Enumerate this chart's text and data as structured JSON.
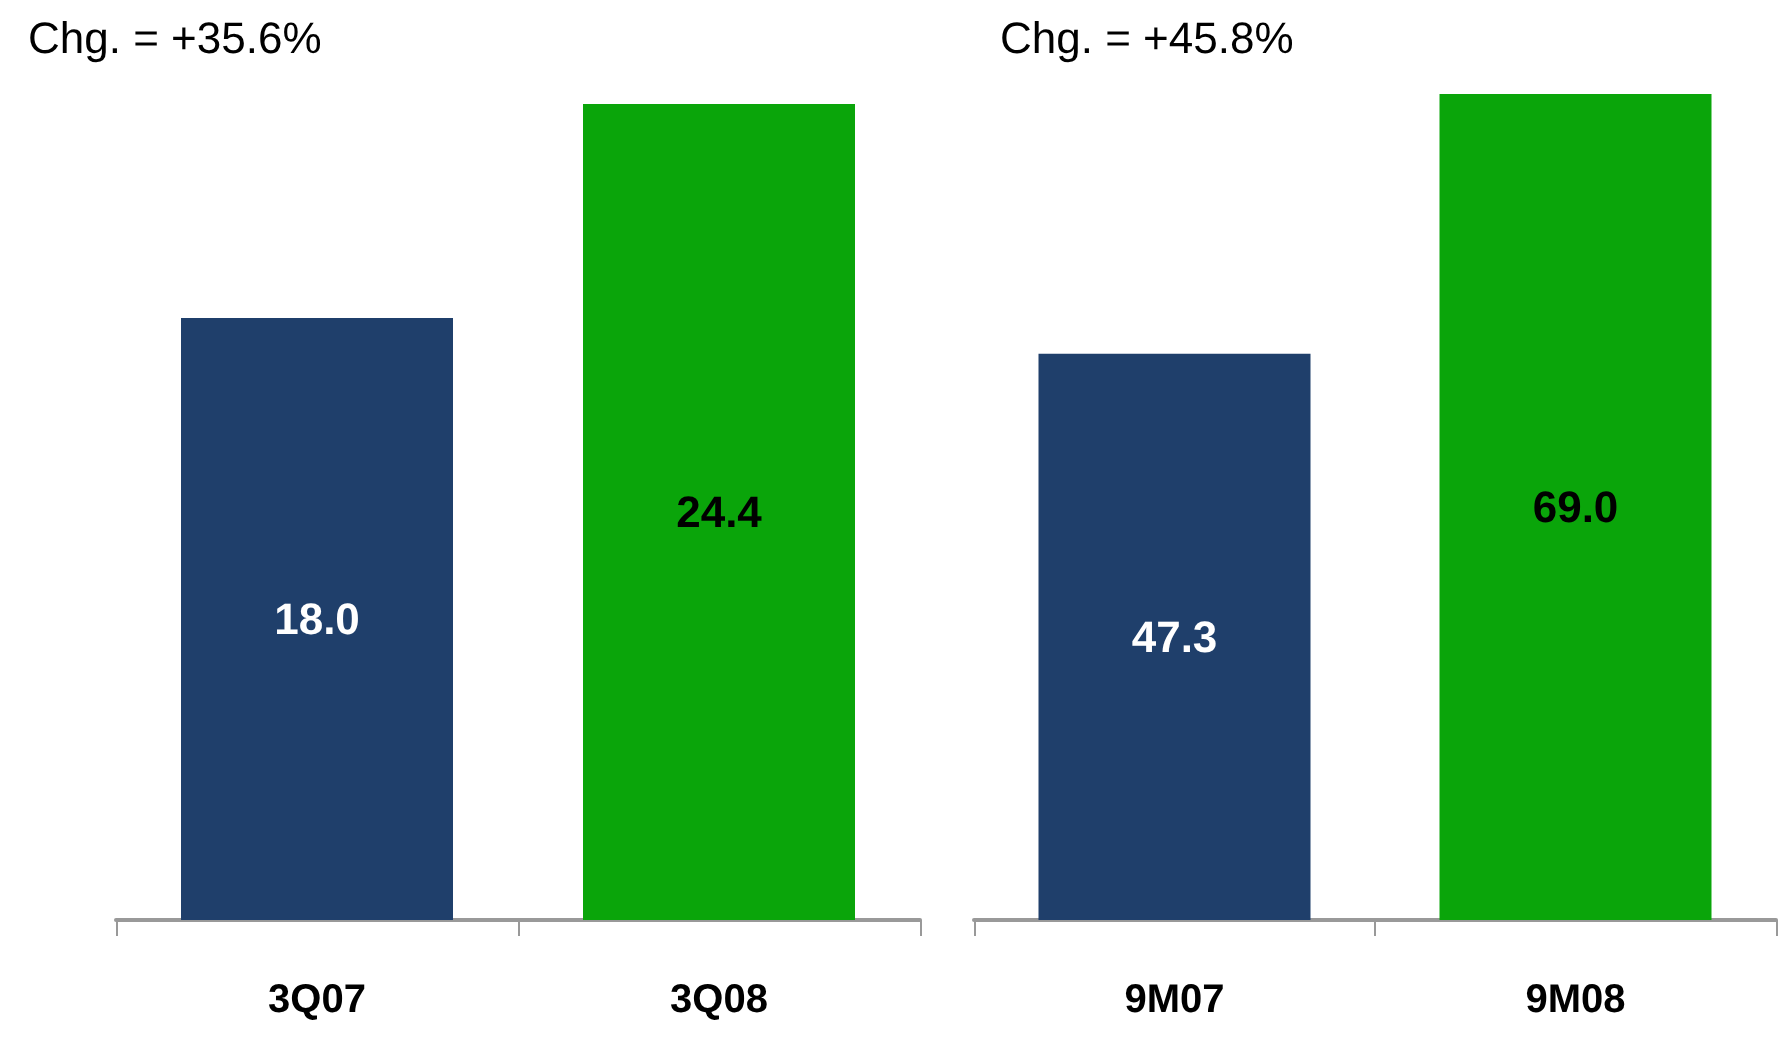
{
  "chart_data": [
    {
      "type": "bar",
      "categories": [
        "3Q07",
        "3Q08"
      ],
      "values": [
        18.0,
        24.4
      ],
      "colors": [
        "#1f3f6b",
        "#0aa50a"
      ],
      "value_labels": [
        "18.0",
        "24.4"
      ],
      "annotations": [
        "Chg. = +35.6%"
      ]
    },
    {
      "type": "bar",
      "categories": [
        "9M07",
        "9M08"
      ],
      "values": [
        47.3,
        69.0
      ],
      "colors": [
        "#1f3f6b",
        "#0aa50a"
      ],
      "value_labels": [
        "47.3",
        "69.0"
      ],
      "annotations": [
        "Chg. = +45.8%"
      ]
    }
  ]
}
